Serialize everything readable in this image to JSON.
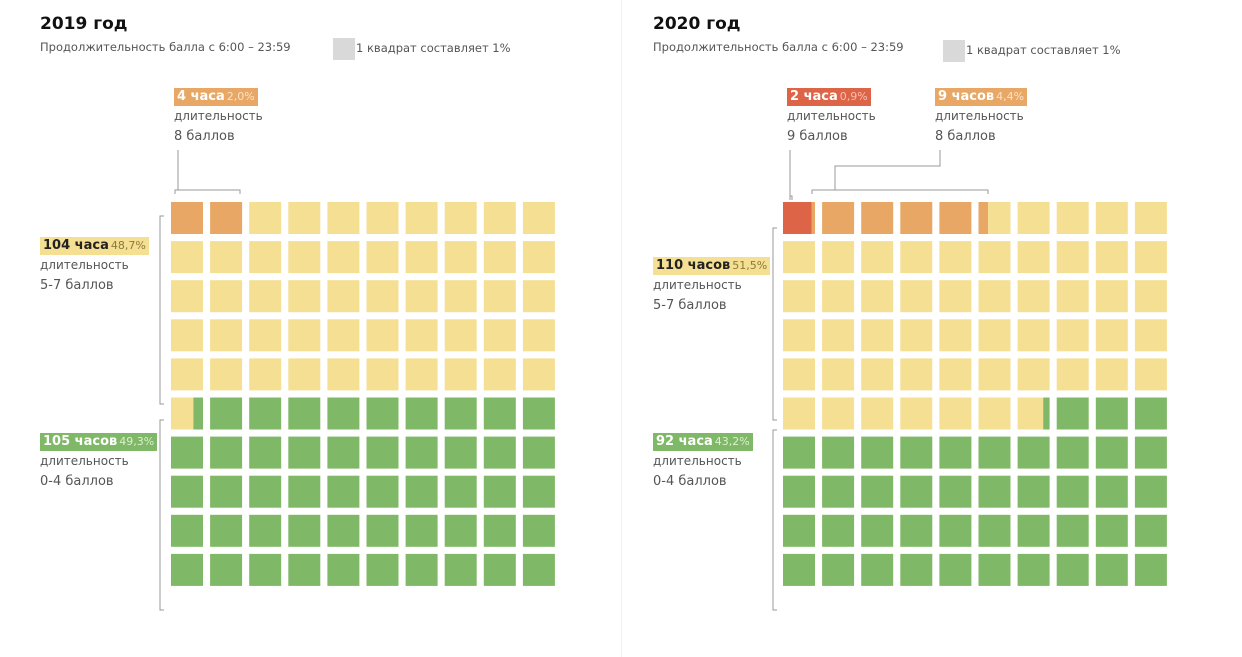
{
  "colors": {
    "red": "#dd6446",
    "orange": "#e8a765",
    "yellow": "#f5df93",
    "green": "#7fb866",
    "bracket": "#999999",
    "legend": "#d9d9d9"
  },
  "panels": [
    {
      "title": "2019 год",
      "subtitle": "Продолжительность балла с 6:00 – 23:59",
      "legend_label": "1 квадрат составляет 1%",
      "annotations": {
        "top1": {
          "value": "4 часа",
          "pct": "2,0%",
          "line1": "длительность",
          "line2": "8 баллов"
        },
        "mid": {
          "value": "104 часа",
          "pct": "48,7%",
          "line1": "длительность",
          "line2": "5-7 баллов"
        },
        "low": {
          "value": "105 часов",
          "pct": "49,3%",
          "line1": "длительность",
          "line2": "0-4 баллов"
        }
      }
    },
    {
      "title": "2020 год",
      "subtitle": "Продолжительность балла с 6:00 – 23:59",
      "legend_label": "1 квадрат составляет 1%",
      "annotations": {
        "top1": {
          "value": "2 часа",
          "pct": "0,9%",
          "line1": "длительность",
          "line2": "9 баллов"
        },
        "top2": {
          "value": "9 часов",
          "pct": "4,4%",
          "line1": "длительность",
          "line2": "8 баллов"
        },
        "mid": {
          "value": "110 часов",
          "pct": "51,5%",
          "line1": "длительность",
          "line2": "5-7 баллов"
        },
        "low": {
          "value": "92 часа",
          "pct": "43,2%",
          "line1": "длительность",
          "line2": "0-4 баллов"
        }
      }
    }
  ],
  "chart_data": [
    {
      "type": "waffle",
      "title": "2019 год",
      "unit_label": "1 квадрат составляет 1%",
      "categories": [
        "8 баллов",
        "5-7 баллов",
        "0-4 баллов"
      ],
      "hours": [
        4,
        104,
        105
      ],
      "percent": [
        2.0,
        48.7,
        49.3
      ],
      "colors": [
        "orange",
        "yellow",
        "green"
      ]
    },
    {
      "type": "waffle",
      "title": "2020 год",
      "unit_label": "1 квадрат составляет 1%",
      "categories": [
        "9 баллов",
        "8 баллов",
        "5-7 баллов",
        "0-4 баллов"
      ],
      "hours": [
        2,
        9,
        110,
        92
      ],
      "percent": [
        0.9,
        4.4,
        51.5,
        43.2
      ],
      "colors": [
        "red",
        "orange",
        "yellow",
        "green"
      ]
    }
  ]
}
